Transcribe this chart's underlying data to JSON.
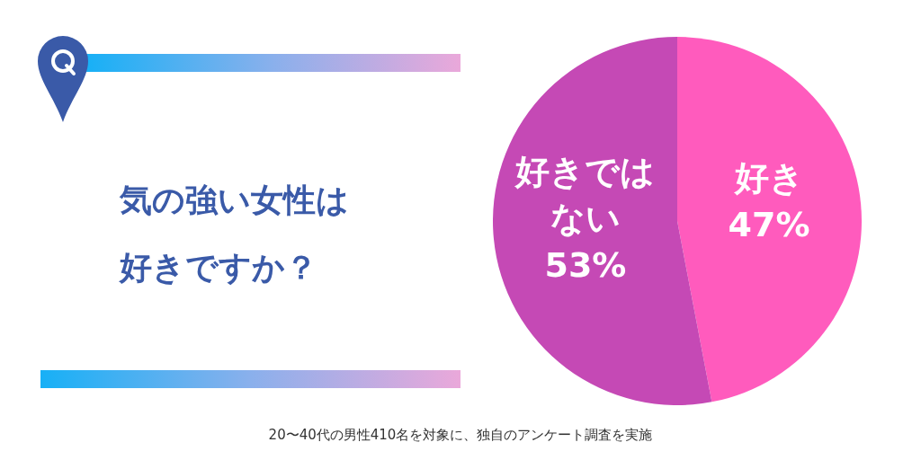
{
  "chart_data": {
    "type": "pie",
    "title": "気の強い女性は好きですか？",
    "categories": [
      "好き",
      "好きではない"
    ],
    "values": [
      47,
      53
    ],
    "colors": [
      "#ff5bbd",
      "#c549b5"
    ],
    "value_labels": [
      "47%",
      "53%"
    ],
    "annotations": [
      "20〜40代の男性410名を対象に、独自のアンケート調査を実施"
    ]
  }
}
